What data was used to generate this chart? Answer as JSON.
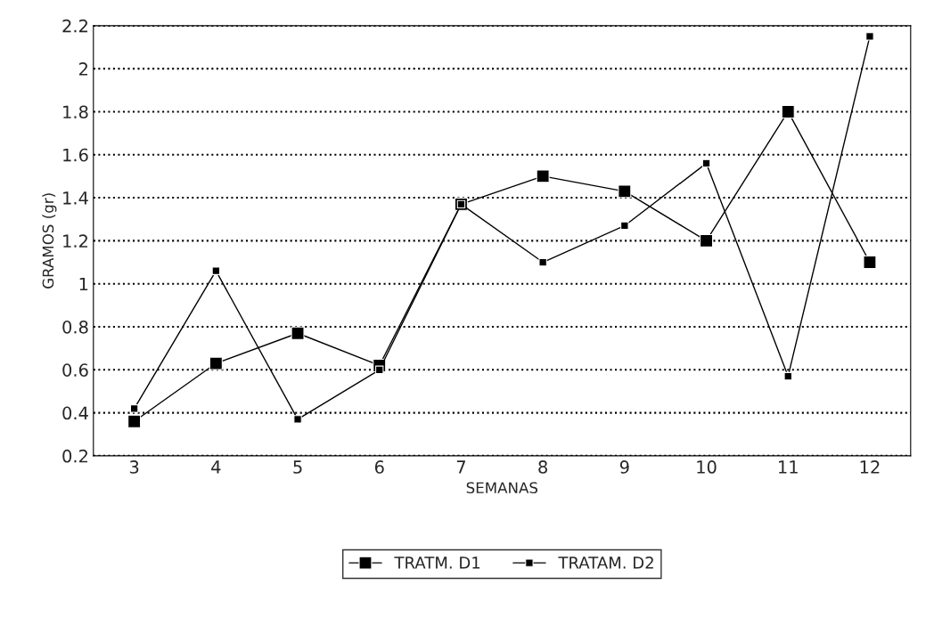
{
  "chart_data": {
    "type": "line",
    "xlabel": "SEMANAS",
    "ylabel": "GRAMOS (gr)",
    "x": [
      3,
      4,
      5,
      6,
      7,
      8,
      9,
      10,
      11,
      12
    ],
    "xlim": [
      2.5,
      12.5
    ],
    "xticks": [
      3,
      4,
      5,
      6,
      7,
      8,
      9,
      10,
      11,
      12
    ],
    "ylim": [
      0.2,
      2.2
    ],
    "yticks": [
      0.2,
      0.4,
      0.6,
      0.8,
      1,
      1.2,
      1.4,
      1.6,
      1.8,
      2,
      2.2
    ],
    "grid": "y",
    "legend": "bottom",
    "marker": "square",
    "line_style": "solid",
    "series": [
      {
        "name": "TRATM. D1",
        "color": "#000000",
        "values": [
          0.36,
          0.63,
          0.77,
          0.62,
          1.37,
          1.5,
          1.43,
          1.2,
          1.8,
          1.1
        ]
      },
      {
        "name": "TRATAM. D2",
        "color": "#000000",
        "values": [
          0.42,
          1.06,
          0.37,
          0.6,
          1.37,
          1.1,
          1.27,
          1.56,
          0.57,
          2.15
        ]
      }
    ]
  }
}
